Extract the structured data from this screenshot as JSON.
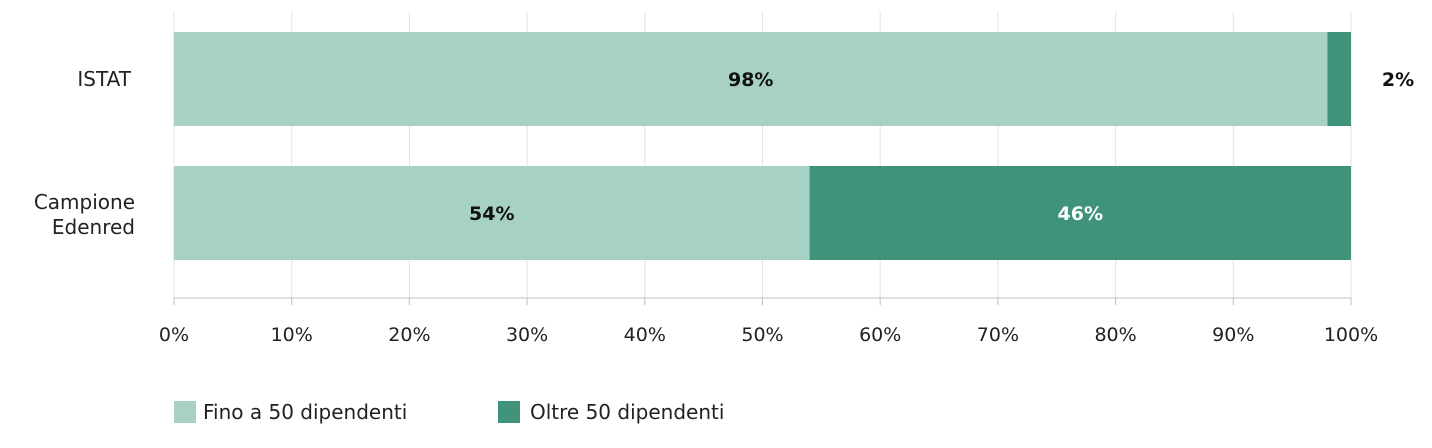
{
  "chart_data": {
    "type": "bar",
    "orientation": "horizontal",
    "stacked": true,
    "categories": [
      "ISTAT",
      "Campione Edenred"
    ],
    "series": [
      {
        "name": "Fino a 50 dipendenti",
        "values": [
          98,
          54
        ],
        "labels": [
          "98%",
          "54%"
        ],
        "color": "#a8d1c5",
        "label_color": "#111111"
      },
      {
        "name": "Oltre 50 dipendenti",
        "values": [
          2,
          46
        ],
        "labels": [
          "2%",
          "46%"
        ],
        "color": "#40937b",
        "label_color": "#ffffff"
      }
    ],
    "xlim": [
      0,
      100
    ],
    "x_ticks": [
      "0%",
      "10%",
      "20%",
      "30%",
      "40%",
      "50%",
      "60%",
      "70%",
      "80%",
      "90%",
      "100%"
    ],
    "grid": true,
    "legend_position": "bottom-left",
    "title": "",
    "xlabel": "",
    "ylabel": ""
  }
}
